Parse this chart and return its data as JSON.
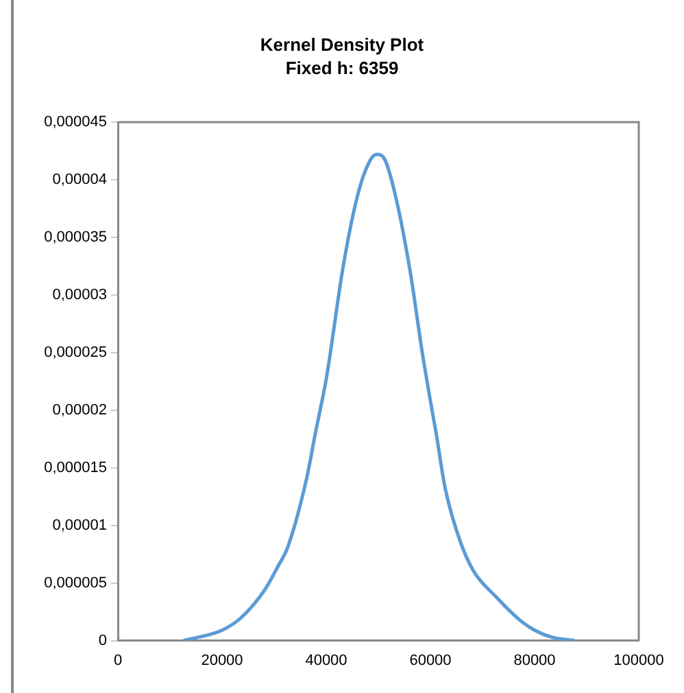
{
  "chart_data": {
    "type": "line",
    "title": "Kernel Density Plot",
    "subtitle": "Fixed h: 6359",
    "x": [
      12600,
      20000,
      23700,
      28200,
      30800,
      32600,
      36200,
      38000,
      40000,
      43300,
      46000,
      48200,
      49700,
      51300,
      53500,
      56200,
      58400,
      60000,
      61100,
      62800,
      65500,
      68200,
      72600,
      77100,
      80000,
      83300,
      87700
    ],
    "series": [
      {
        "color": "#5b9bd5",
        "values": [
          0,
          9e-07,
          2e-06,
          4.4e-06,
          6.5e-06,
          8.1e-06,
          1.4e-05,
          1.82e-05,
          2.27e-05,
          3.26e-05,
          3.86e-05,
          4.15e-05,
          4.22e-05,
          4.17e-05,
          3.82e-05,
          3.18e-05,
          2.51e-05,
          2.08e-05,
          1.8e-05,
          1.33e-05,
          8.9e-06,
          6.1e-06,
          3.8e-06,
          1.8e-06,
          9e-07,
          3e-07,
          0
        ]
      }
    ],
    "xlim": [
      0,
      100000
    ],
    "xticks": [
      0,
      20000,
      40000,
      60000,
      80000,
      100000
    ],
    "ylim": [
      0,
      4.5e-05
    ],
    "yticks": [
      0,
      {
        "value": 5e-06,
        "label": "0,000005"
      },
      {
        "value": 1e-05,
        "label": "0,00001"
      },
      {
        "value": 1.5e-05,
        "label": "0,000015"
      },
      {
        "value": 2e-05,
        "label": "0,00002"
      },
      {
        "value": 2.5e-05,
        "label": "0,000025"
      },
      {
        "value": 3e-05,
        "label": "0,00003"
      },
      {
        "value": 3.5e-05,
        "label": "0,000035"
      },
      {
        "value": 4e-05,
        "label": "0,00004"
      },
      {
        "value": 4.5e-05,
        "label": "0,000045"
      }
    ],
    "grid": false,
    "legend": false,
    "marker": "none",
    "line_style": "solid"
  }
}
